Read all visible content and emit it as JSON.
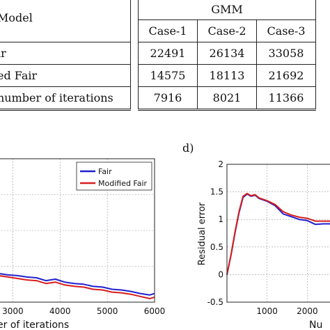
{
  "table": {
    "model_header": "Model",
    "group_header": "GMM",
    "cases": [
      "Case-1",
      "Case-2",
      "Case-3"
    ],
    "rows": [
      {
        "label": "ir",
        "values": [
          "22491",
          "26134",
          "33058"
        ]
      },
      {
        "label": "ed Fair",
        "values": [
          "14575",
          "18113",
          "21692"
        ]
      },
      {
        "label": "number of iterations",
        "values": [
          "7916",
          "8021",
          "11366"
        ]
      }
    ]
  },
  "chart_left": {
    "xlabel": "er of iterations",
    "legend": [
      "Fair",
      "Modified Fair"
    ]
  },
  "chart_right": {
    "panel_label": "d)",
    "ylabel": "Residual error",
    "xlabel": "Nu"
  },
  "colors": {
    "fair": "#1f1fd0",
    "modified_fair": "#d81c1c"
  },
  "chart_data": [
    {
      "type": "line",
      "xlabel": "er of iterations",
      "ylabel": "",
      "xlim": [
        2700,
        6000
      ],
      "ylim": [
        0,
        2
      ],
      "grid": true,
      "legend_position": "top-right",
      "x_ticks": [
        3000,
        4000,
        5000,
        6000
      ],
      "series": [
        {
          "name": "Fair",
          "x": [
            2700,
            2900,
            3100,
            3300,
            3500,
            3700,
            3900,
            4100,
            4300,
            4500,
            4700,
            4900,
            5100,
            5300,
            5500,
            5700,
            5900,
            6000
          ],
          "y": [
            0.4,
            0.38,
            0.37,
            0.35,
            0.34,
            0.3,
            0.32,
            0.28,
            0.26,
            0.25,
            0.22,
            0.21,
            0.18,
            0.17,
            0.15,
            0.12,
            0.1,
            0.12
          ]
        },
        {
          "name": "Modified Fair",
          "x": [
            2700,
            2900,
            3100,
            3300,
            3500,
            3700,
            3900,
            4100,
            4300,
            4500,
            4700,
            4900,
            5100,
            5300,
            5500,
            5700,
            5900,
            6000
          ],
          "y": [
            0.37,
            0.35,
            0.33,
            0.31,
            0.3,
            0.26,
            0.28,
            0.24,
            0.22,
            0.21,
            0.18,
            0.17,
            0.14,
            0.13,
            0.11,
            0.08,
            0.05,
            0.07
          ]
        }
      ]
    },
    {
      "type": "line",
      "xlabel": "Nu",
      "ylabel": "Residual error",
      "xlim": [
        0,
        2600
      ],
      "ylim": [
        -0.5,
        2
      ],
      "grid": true,
      "x_ticks": [
        1000,
        2000
      ],
      "y_ticks": [
        -0.5,
        0,
        0.5,
        1,
        1.5,
        2
      ],
      "series": [
        {
          "name": "Fair",
          "x": [
            0,
            100,
            200,
            300,
            400,
            500,
            600,
            700,
            800,
            1000,
            1200,
            1400,
            1600,
            1800,
            2000,
            2200,
            2400,
            2600
          ],
          "y": [
            0,
            0.35,
            0.75,
            1.12,
            1.4,
            1.46,
            1.42,
            1.44,
            1.38,
            1.33,
            1.25,
            1.1,
            1.05,
            1.0,
            0.98,
            0.91,
            0.92,
            0.92
          ]
        },
        {
          "name": "Modified Fair",
          "x": [
            0,
            100,
            200,
            300,
            400,
            500,
            600,
            700,
            800,
            1000,
            1200,
            1400,
            1600,
            1800,
            2000,
            2200,
            2400,
            2600
          ],
          "y": [
            0,
            0.36,
            0.77,
            1.14,
            1.42,
            1.47,
            1.43,
            1.45,
            1.39,
            1.34,
            1.27,
            1.14,
            1.08,
            1.04,
            1.02,
            0.97,
            0.97,
            0.97
          ]
        }
      ]
    }
  ]
}
